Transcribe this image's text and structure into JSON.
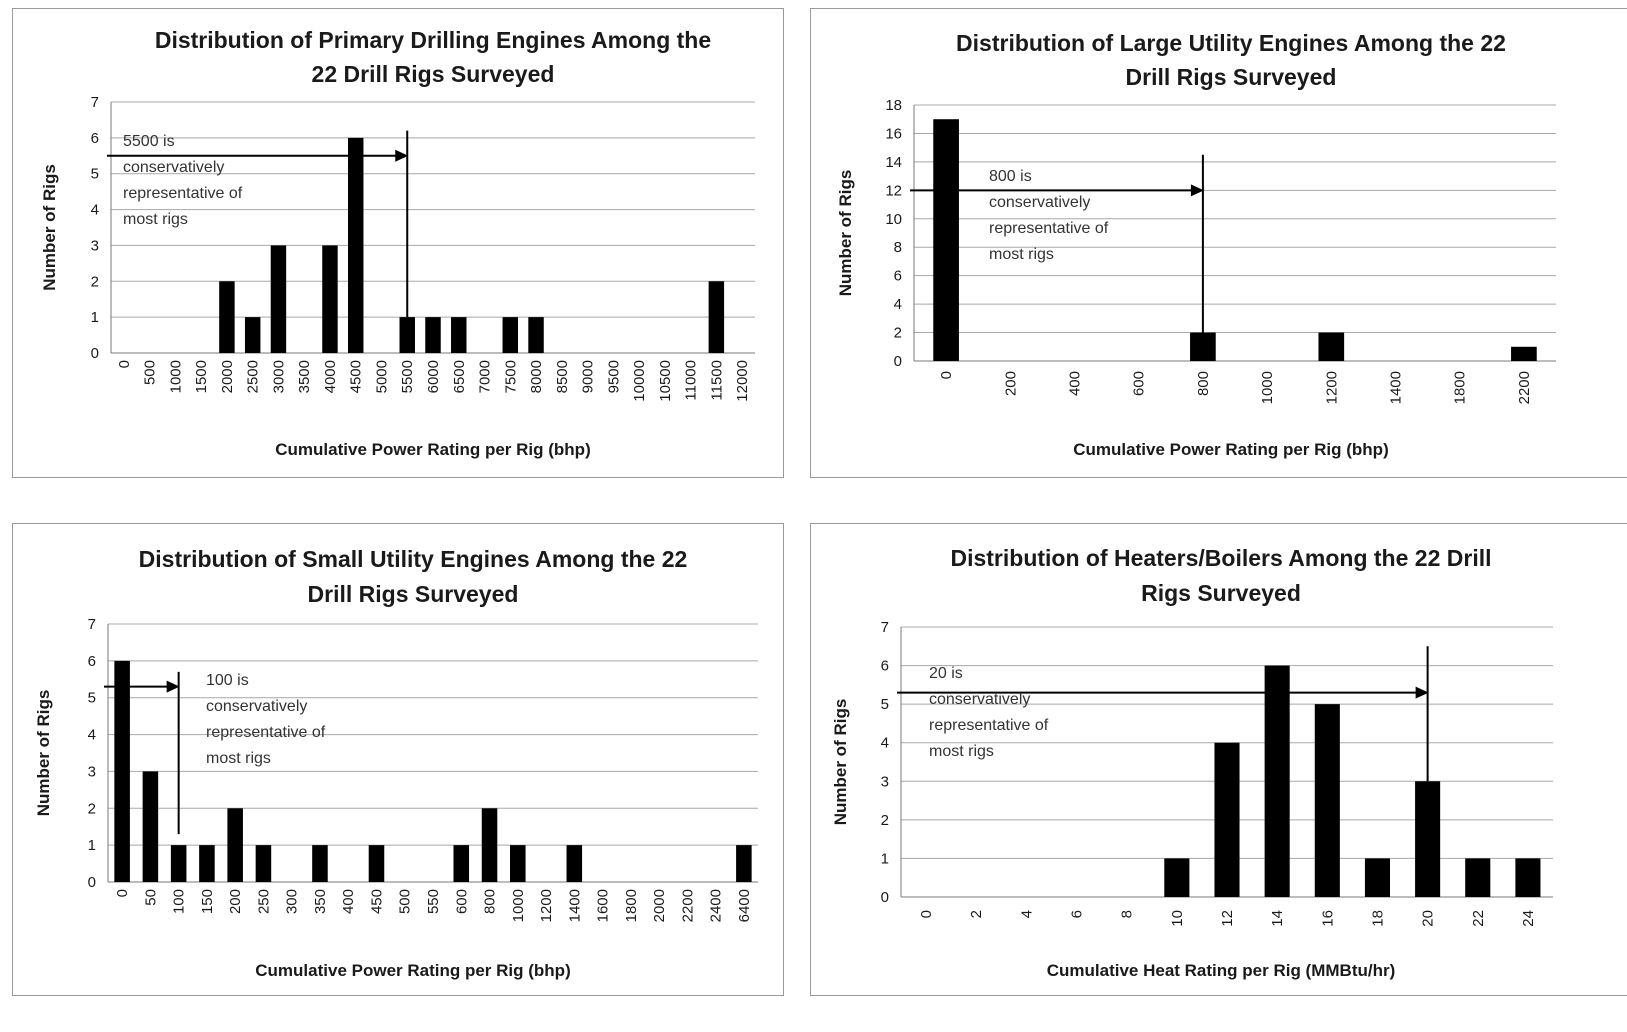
{
  "chart_data": [
    {
      "type": "bar",
      "title": [
        "Distribution of Primary Drilling Engines Among the",
        "22 Drill Rigs Surveyed"
      ],
      "xlabel": "Cumulative Power Rating per Rig (bhp)",
      "ylabel": "Number of Rigs",
      "ylim": [
        0,
        7
      ],
      "yticks": [
        "0",
        "1",
        "2",
        "3",
        "4",
        "5",
        "6",
        "7"
      ],
      "grid": true,
      "categories": [
        "0",
        "500",
        "1000",
        "1500",
        "2000",
        "2500",
        "3000",
        "3500",
        "4000",
        "4500",
        "5000",
        "5500",
        "6000",
        "6500",
        "7000",
        "7500",
        "8000",
        "8500",
        "9000",
        "9500",
        "10000",
        "10500",
        "11000",
        "11500",
        "12000"
      ],
      "values": [
        0,
        0,
        0,
        0,
        2,
        1,
        3,
        0,
        3,
        6,
        0,
        1,
        1,
        1,
        0,
        1,
        1,
        0,
        0,
        0,
        0,
        0,
        0,
        2,
        0
      ],
      "annotation": {
        "text": [
          "5500 is",
          "conservatively",
          "representative of",
          "most rigs"
        ],
        "arrow_y": 5.5,
        "marker_category": "5500",
        "marker_top": 6.2,
        "marker_bottom": 1
      }
    },
    {
      "type": "bar",
      "title": [
        "Distribution of Large Utility Engines Among the 22",
        "Drill Rigs Surveyed"
      ],
      "xlabel": "Cumulative Power Rating per Rig (bhp)",
      "ylabel": "Number of Rigs",
      "ylim": [
        0,
        18
      ],
      "yticks": [
        "0",
        "2",
        "4",
        "6",
        "8",
        "10",
        "12",
        "14",
        "16",
        "18"
      ],
      "grid": true,
      "categories": [
        "0",
        "200",
        "400",
        "600",
        "800",
        "1000",
        "1200",
        "1400",
        "1800",
        "2200"
      ],
      "values": [
        17,
        0,
        0,
        0,
        2,
        0,
        2,
        0,
        0,
        1
      ],
      "annotation": {
        "text": [
          "800 is",
          "conservatively",
          "representative of",
          "most rigs"
        ],
        "arrow_y": 12,
        "marker_category": "800",
        "marker_top": 14.5,
        "marker_bottom": 2
      }
    },
    {
      "type": "bar",
      "title": [
        "Distribution of Small Utility Engines Among the 22",
        "Drill Rigs Surveyed"
      ],
      "xlabel": "Cumulative Power Rating per Rig (bhp)",
      "ylabel": "Number of Rigs",
      "ylim": [
        0,
        7
      ],
      "yticks": [
        "0",
        "1",
        "2",
        "3",
        "4",
        "5",
        "6",
        "7"
      ],
      "grid": true,
      "categories": [
        "0",
        "50",
        "100",
        "150",
        "200",
        "250",
        "300",
        "350",
        "400",
        "450",
        "500",
        "550",
        "600",
        "800",
        "1000",
        "1200",
        "1400",
        "1600",
        "1800",
        "2000",
        "2200",
        "2400",
        "6400"
      ],
      "values": [
        6,
        3,
        1,
        1,
        2,
        1,
        0,
        1,
        0,
        1,
        0,
        0,
        1,
        2,
        1,
        0,
        1,
        0,
        0,
        0,
        0,
        0,
        1
      ],
      "annotation": {
        "text": [
          "100 is",
          "conservatively",
          "representative of",
          "most rigs"
        ],
        "arrow_y": 5.3,
        "marker_category": "100",
        "marker_top": 5.7,
        "marker_bottom": 1.3
      }
    },
    {
      "type": "bar",
      "title": [
        "Distribution of Heaters/Boilers Among the 22 Drill",
        "Rigs Surveyed"
      ],
      "xlabel": "Cumulative Heat Rating per Rig (MMBtu/hr)",
      "ylabel": "Number of Rigs",
      "ylim": [
        0,
        7
      ],
      "yticks": [
        "0",
        "1",
        "2",
        "3",
        "4",
        "5",
        "6",
        "7"
      ],
      "grid": true,
      "categories": [
        "0",
        "2",
        "4",
        "6",
        "8",
        "10",
        "12",
        "14",
        "16",
        "18",
        "20",
        "22",
        "24"
      ],
      "values": [
        0,
        0,
        0,
        0,
        0,
        1,
        4,
        6,
        5,
        1,
        3,
        1,
        1
      ],
      "annotation": {
        "text": [
          "20 is",
          "conservatively",
          "representative of",
          "most rigs"
        ],
        "arrow_y": 5.3,
        "marker_category": "20",
        "marker_top": 6.5,
        "marker_bottom": 3
      }
    }
  ]
}
